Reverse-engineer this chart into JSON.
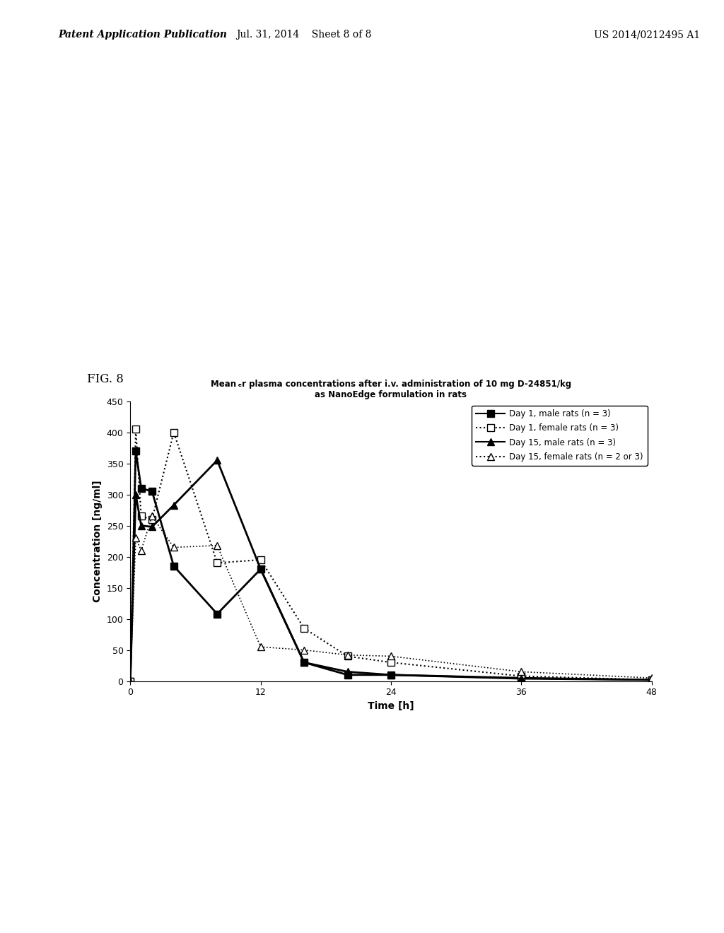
{
  "title_line1": "Mean ₑr plasma concentrations after i.v. administration of 10 mg D-24851/kg",
  "title_line2": "as NanoEdge formulation in rats",
  "xlabel": "Time [h]",
  "ylabel": "Concentration [ng/ml]",
  "xlim": [
    0,
    48
  ],
  "ylim": [
    0,
    450
  ],
  "xticks": [
    0,
    12,
    24,
    36,
    48
  ],
  "yticks": [
    0,
    50,
    100,
    150,
    200,
    250,
    300,
    350,
    400,
    450
  ],
  "series": [
    {
      "label": "Day 1, male rats (n = 3)",
      "x": [
        0,
        0.5,
        1,
        2,
        4,
        8,
        12,
        16,
        20,
        24,
        36,
        48
      ],
      "y": [
        0,
        370,
        310,
        305,
        185,
        108,
        180,
        30,
        10,
        10,
        5,
        2
      ],
      "color": "#000000",
      "linestyle": "-",
      "marker": "s",
      "markersize": 7,
      "linewidth": 2.0
    },
    {
      "label": "Day 1, female rats (n = 3)",
      "x": [
        0,
        0.5,
        1,
        2,
        4,
        8,
        12,
        16,
        20,
        24,
        36,
        48
      ],
      "y": [
        0,
        405,
        265,
        260,
        400,
        190,
        195,
        85,
        40,
        30,
        8,
        2
      ],
      "color": "#000000",
      "linestyle": ":",
      "marker": "s",
      "markerfacecolor": "white",
      "markersize": 7,
      "linewidth": 1.5
    },
    {
      "label": "Day 15, male rats (n = 3)",
      "x": [
        0,
        0.5,
        1,
        2,
        4,
        8,
        12,
        16,
        20,
        24,
        36,
        48
      ],
      "y": [
        0,
        300,
        250,
        248,
        283,
        355,
        180,
        30,
        15,
        10,
        4,
        2
      ],
      "color": "#000000",
      "linestyle": "-",
      "marker": "^",
      "markersize": 7,
      "linewidth": 2.0
    },
    {
      "label": "Day 15, female rats (n = 2 or 3)",
      "x": [
        0,
        0.5,
        1,
        2,
        4,
        8,
        12,
        16,
        20,
        24,
        36,
        48
      ],
      "y": [
        0,
        230,
        210,
        265,
        215,
        218,
        55,
        50,
        42,
        40,
        15,
        5
      ],
      "color": "#000000",
      "linestyle": ":",
      "marker": "^",
      "markerfacecolor": "white",
      "markersize": 7,
      "linewidth": 1.2
    }
  ],
  "fig_label": "FIG. 8",
  "header_left": "Patent Application Publication",
  "header_center": "Jul. 31, 2014    Sheet 8 of 8",
  "header_right": "US 2014/0212495 A1",
  "background_color": "#ffffff"
}
